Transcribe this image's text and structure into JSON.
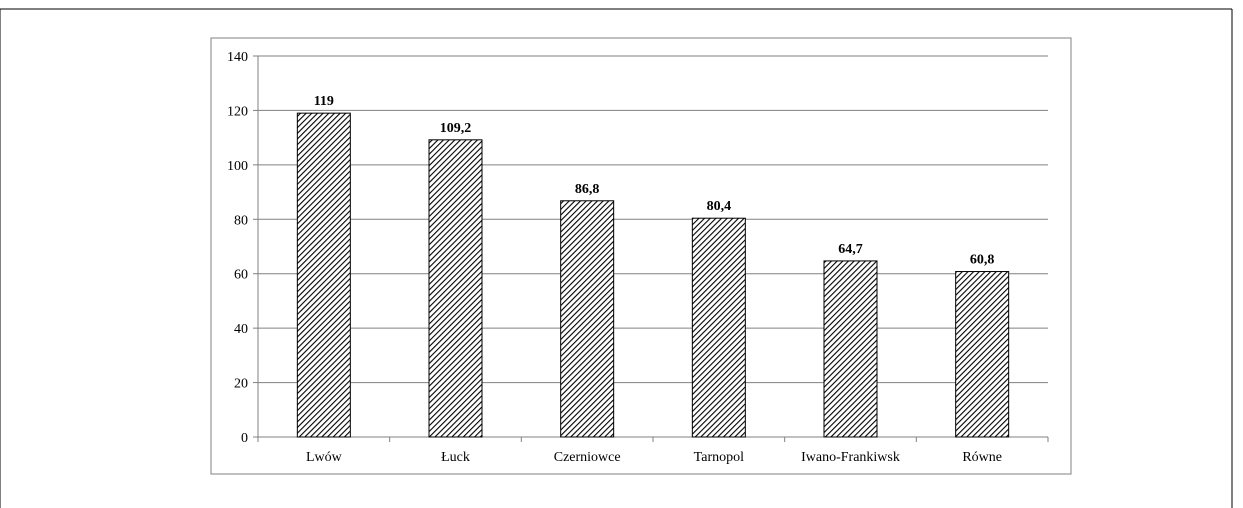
{
  "chart_data": {
    "type": "bar",
    "categories": [
      "Lwów",
      "Łuck",
      "Czerniowce",
      "Tarnopol",
      "Iwano-Frankiwsk",
      "Równe"
    ],
    "values": [
      119,
      109.2,
      86.8,
      80.4,
      64.7,
      60.8
    ],
    "data_labels": [
      "119",
      "109,2",
      "86,8",
      "80,4",
      "64,7",
      "60,8"
    ],
    "title": "",
    "xlabel": "",
    "ylabel": "",
    "ylim": [
      0,
      140
    ],
    "yticks": [
      0,
      20,
      40,
      60,
      80,
      100,
      120,
      140
    ],
    "ytick_labels": [
      "0",
      "20",
      "40",
      "60",
      "80",
      "100",
      "120",
      "140"
    ],
    "grid": true,
    "legend": "none",
    "bar_fill": "hatched",
    "colors": {
      "bar_stroke": "#000000",
      "grid": "#808080",
      "frame": "#808080"
    }
  }
}
